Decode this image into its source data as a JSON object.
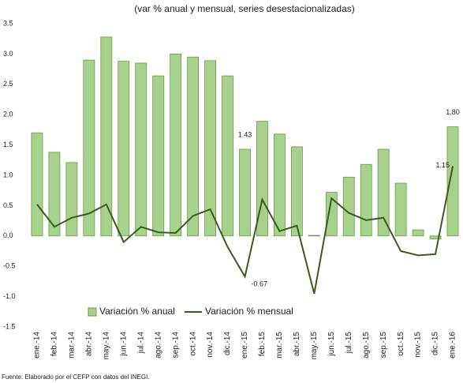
{
  "chart_data": {
    "type": "bar_line",
    "title": "(var % anual y mensual, series desestacionalizadas)",
    "source": "Fuente: Elaborado por el CEFP con datos del INEGI.",
    "categories": [
      "ene.-14",
      "feb.-14",
      "mar.-14",
      "abr.-14",
      "may.-14",
      "jun.-14",
      "jul.-14",
      "ago.-14",
      "sep.-14",
      "oct.-14",
      "nov.-14",
      "dic.-14",
      "ene.-15",
      "feb.-15",
      "mar.-15",
      "abr.-15",
      "may.-15",
      "jun.-15",
      "jul.-15",
      "ago.-15",
      "sep.-15",
      "oct.-15",
      "nov.-15",
      "dic.-15",
      "ene.-16"
    ],
    "series": [
      {
        "name": "Variación % anual",
        "kind": "bar",
        "color": "#a9d18e",
        "edge": "#6b9a47",
        "values": [
          1.7,
          1.38,
          1.21,
          2.9,
          3.28,
          2.88,
          2.85,
          2.64,
          3.0,
          2.95,
          2.89,
          2.64,
          1.43,
          1.89,
          1.68,
          1.47,
          0.01,
          0.72,
          0.97,
          1.18,
          1.43,
          0.87,
          0.1,
          -0.05,
          1.8
        ],
        "value_labels": [
          null,
          null,
          null,
          null,
          null,
          null,
          null,
          null,
          null,
          null,
          null,
          null,
          "1.43",
          null,
          null,
          null,
          null,
          null,
          null,
          null,
          null,
          null,
          null,
          null,
          "1.80"
        ]
      },
      {
        "name": "Variación % mensual",
        "kind": "line",
        "color": "#3b5a1f",
        "values": [
          0.52,
          0.15,
          0.3,
          0.37,
          0.52,
          -0.1,
          0.15,
          0.06,
          0.05,
          0.33,
          0.44,
          -0.18,
          -0.67,
          0.6,
          0.08,
          0.17,
          -0.95,
          0.62,
          0.38,
          0.26,
          0.3,
          -0.25,
          -0.32,
          -0.3,
          1.15
        ],
        "value_labels": [
          null,
          null,
          null,
          null,
          null,
          null,
          null,
          null,
          null,
          null,
          null,
          null,
          "-0.67",
          null,
          null,
          null,
          null,
          null,
          null,
          null,
          null,
          null,
          null,
          null,
          "1.15"
        ]
      }
    ],
    "ylim": [
      -1.5,
      3.5
    ],
    "yticks": [
      3.5,
      {
        "value": 3.0,
        "label": "3.0"
      },
      2.5,
      {
        "value": 2.0,
        "label": "2.0"
      },
      1.5,
      {
        "value": 1.0,
        "label": "1.0"
      },
      0.5,
      {
        "value": 0.0,
        "label": "0.0"
      },
      -0.5,
      {
        "value": -1.0,
        "label": "-1.0"
      },
      -1.5
    ],
    "grid": false,
    "legend": "bottom-left"
  }
}
